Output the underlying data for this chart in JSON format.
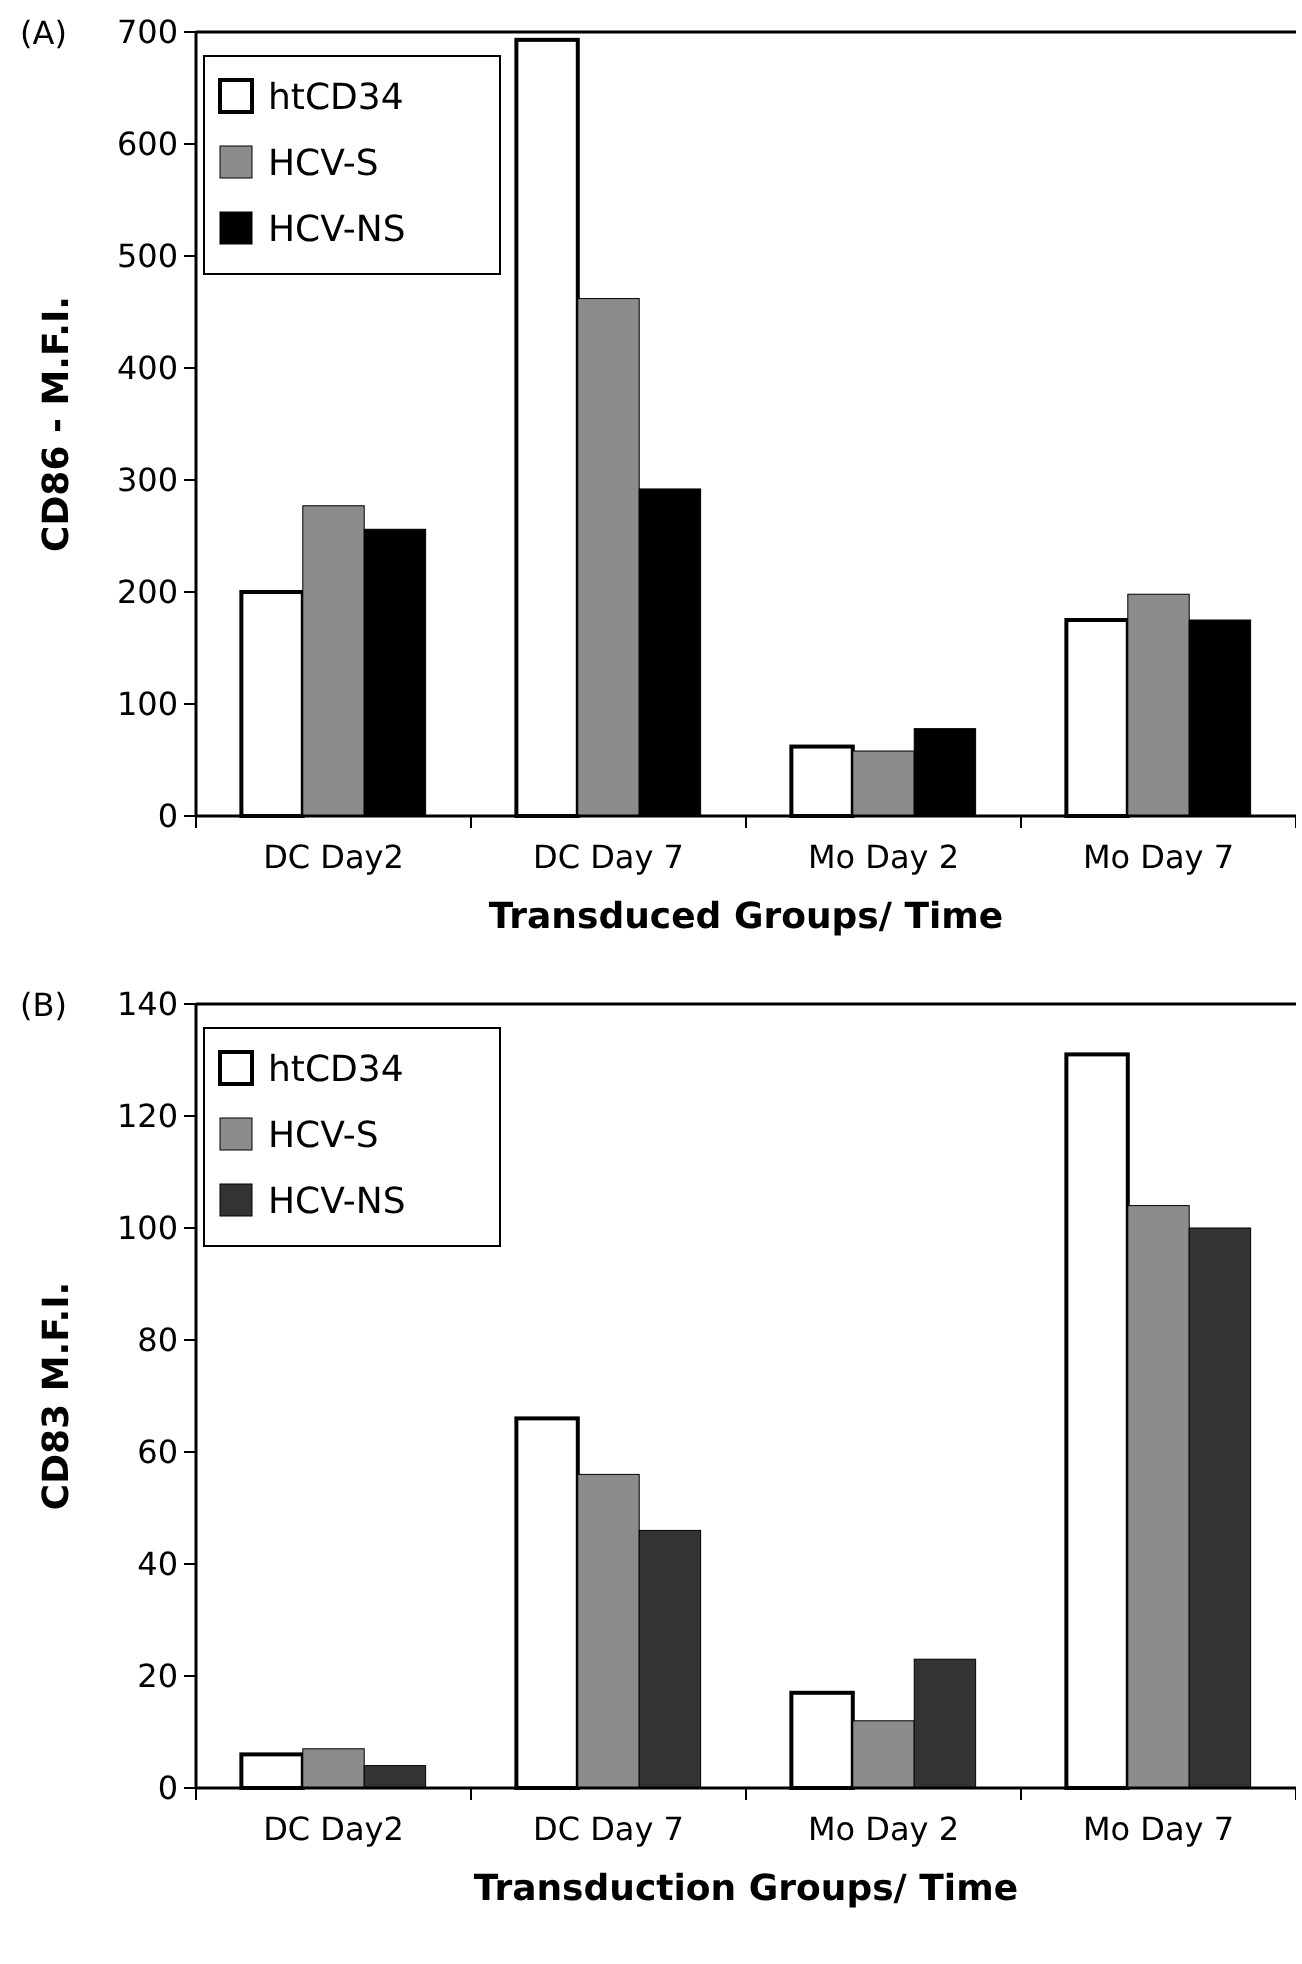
{
  "chart_data": [
    {
      "type": "bar",
      "title": "(A)",
      "xlabel": "Transduced Groups/ Time",
      "ylabel": "CD86 - M.F.I.",
      "categories": [
        "DC Day2",
        "DC Day 7",
        "Mo Day 2",
        "Mo Day 7"
      ],
      "series": [
        {
          "name": "htCD34",
          "color": "#ffffff",
          "values": [
            200,
            693,
            62,
            175
          ]
        },
        {
          "name": "HCV-S",
          "color": "#8c8c8c",
          "values": [
            277,
            462,
            58,
            198
          ]
        },
        {
          "name": "HCV-NS",
          "color": "#000000",
          "values": [
            256,
            292,
            78,
            175
          ]
        }
      ],
      "ylim": [
        0,
        700
      ],
      "yticks": [
        0,
        100,
        200,
        300,
        400,
        500,
        600,
        700
      ],
      "grid": false,
      "legend": "top left"
    },
    {
      "type": "bar",
      "title": "(B)",
      "xlabel": "Transduction Groups/ Time",
      "ylabel": "CD83 M.F.I.",
      "categories": [
        "DC Day2",
        "DC Day 7",
        "Mo Day 2",
        "Mo Day 7"
      ],
      "series": [
        {
          "name": "htCD34",
          "color": "#ffffff",
          "values": [
            6,
            66,
            17,
            131
          ]
        },
        {
          "name": "HCV-S",
          "color": "#8c8c8c",
          "values": [
            7,
            56,
            12,
            104
          ]
        },
        {
          "name": "HCV-NS",
          "color": "#333333",
          "values": [
            4,
            46,
            23,
            100
          ]
        }
      ],
      "ylim": [
        0,
        140
      ],
      "yticks": [
        0,
        20,
        40,
        60,
        80,
        100,
        120,
        140
      ],
      "grid": false,
      "legend": "top left"
    }
  ]
}
